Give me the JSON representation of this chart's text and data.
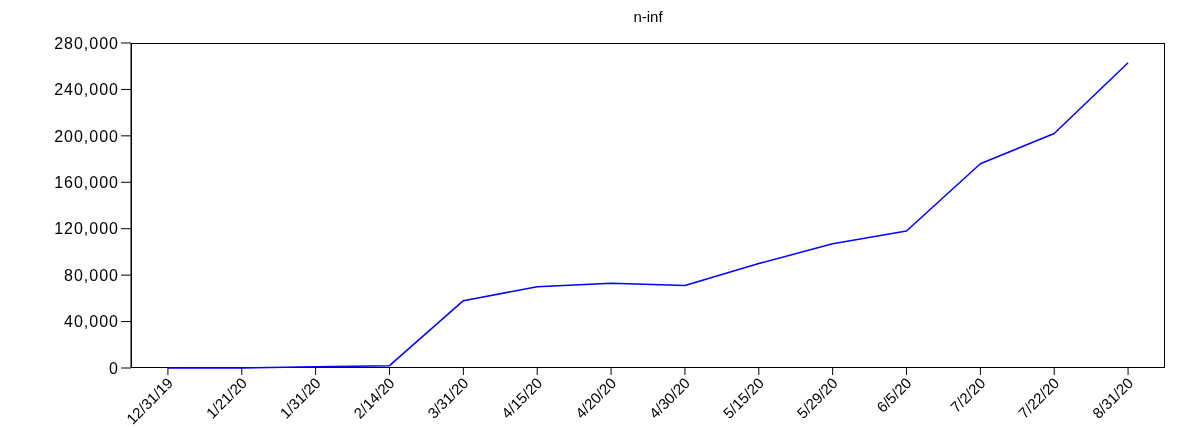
{
  "chart_data": {
    "type": "line",
    "title": "n-inf",
    "categories": [
      "12/31/19",
      "1/21/20",
      "1/31/20",
      "2/14/20",
      "3/31/20",
      "4/15/20",
      "4/20/20",
      "4/30/20",
      "5/15/20",
      "5/29/20",
      "6/5/20",
      "7/2/20",
      "7/22/20",
      "8/31/20"
    ],
    "series": [
      {
        "color": "#0000ff",
        "values": [
          0,
          0,
          1000,
          2000,
          58000,
          70000,
          73000,
          71000,
          90000,
          107000,
          118000,
          176000,
          202000,
          263000
        ]
      }
    ],
    "ylim": [
      0,
      280000
    ],
    "yticks": [
      {
        "value": 0,
        "label": "0"
      },
      {
        "value": 40000,
        "label": "40,000"
      },
      {
        "value": 80000,
        "label": "80,000"
      },
      {
        "value": 120000,
        "label": "120,000"
      },
      {
        "value": 160000,
        "label": "160,000"
      },
      {
        "value": 200000,
        "label": "200,000"
      },
      {
        "value": 240000,
        "label": "240,000"
      },
      {
        "value": 280000,
        "label": "280,000"
      }
    ],
    "grid": false,
    "legend": false,
    "marker": "none",
    "line_style": "solid"
  }
}
